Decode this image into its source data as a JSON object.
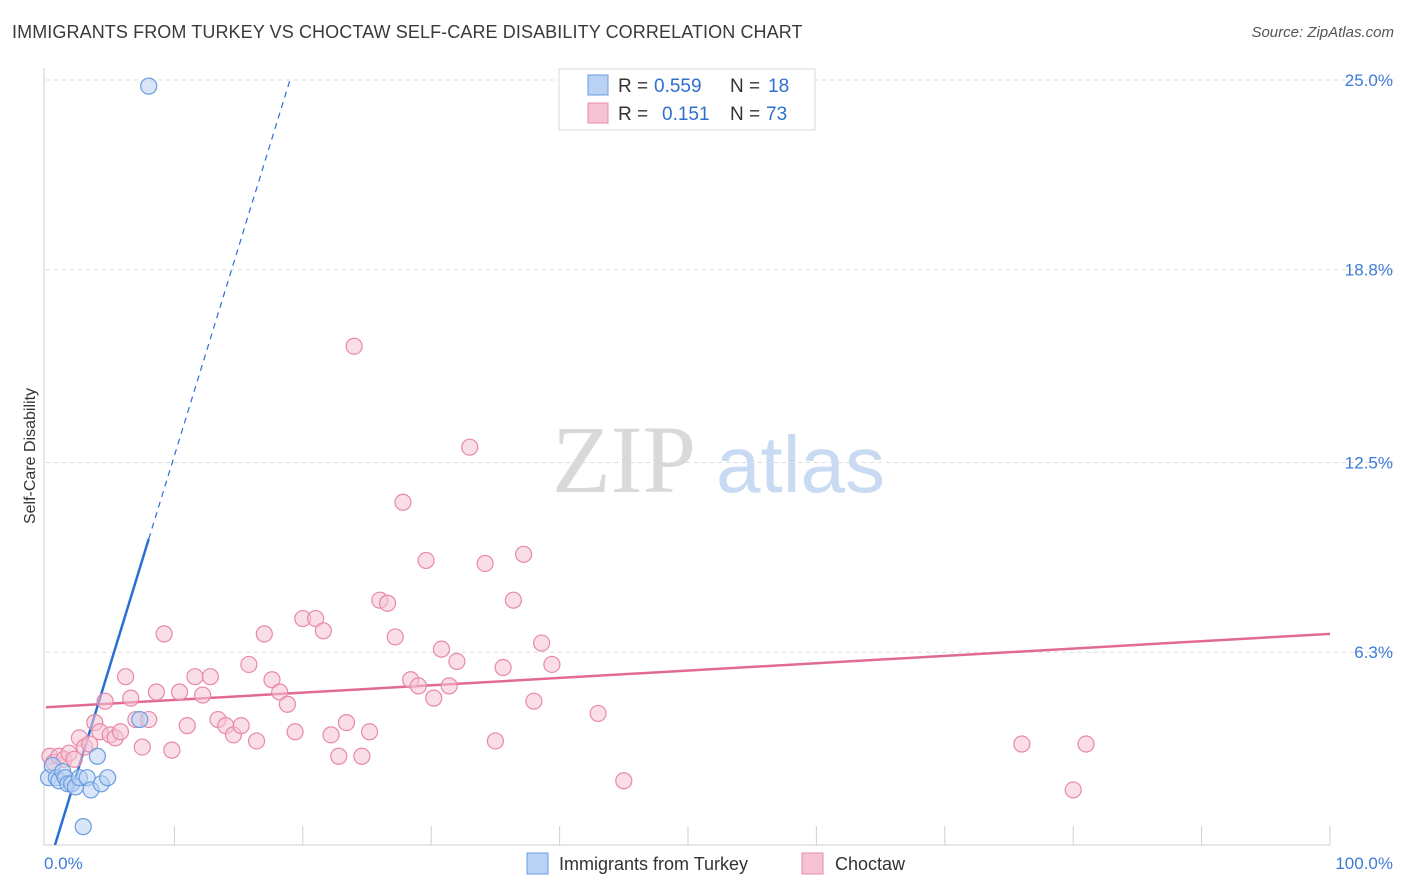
{
  "header": {
    "title": "IMMIGRANTS FROM TURKEY VS CHOCTAW SELF-CARE DISABILITY CORRELATION CHART",
    "source": "Source: ZipAtlas.com"
  },
  "watermark": {
    "zip": "ZIP",
    "atlas": "atlas"
  },
  "chart_data": {
    "type": "scatter",
    "title": "IMMIGRANTS FROM TURKEY VS CHOCTAW SELF-CARE DISABILITY CORRELATION CHART",
    "ylabel": "Self-Care Disability",
    "xlabel": "",
    "xlim": [
      0,
      100
    ],
    "ylim": [
      0,
      25
    ],
    "x_tick_labels": [
      "0.0%",
      "100.0%"
    ],
    "y_ticks": [
      {
        "value": 6.3,
        "label": "6.3%"
      },
      {
        "value": 12.5,
        "label": "12.5%"
      },
      {
        "value": 18.8,
        "label": "18.8%"
      },
      {
        "value": 25.0,
        "label": "25.0%"
      }
    ],
    "grid": true,
    "legend_position": "top-center",
    "stats": [
      {
        "r_label": "R =",
        "r": "0.559",
        "n_label": "N =",
        "n": "18"
      },
      {
        "r_label": "R =",
        "r": "0.151",
        "n_label": "N =",
        "n": "73"
      }
    ],
    "series": [
      {
        "name": "Immigrants from Turkey",
        "color": "#6a9de0",
        "fill": "#b9d1f2",
        "trend": {
          "x0": 0.7,
          "y0": 0.0,
          "x1": 8.0,
          "y1": 10.0,
          "x_dash_end": 19.0,
          "y_dash_end": 25.0,
          "color": "#2a6fd6"
        },
        "x": [
          0.2,
          0.5,
          0.8,
          1.0,
          1.3,
          1.5,
          1.7,
          2.0,
          2.3,
          2.6,
          2.9,
          3.2,
          3.5,
          4.0,
          4.3,
          4.8,
          7.3,
          8.0
        ],
        "y": [
          2.2,
          2.6,
          2.2,
          2.1,
          2.4,
          2.2,
          2.0,
          2.0,
          1.9,
          2.2,
          0.6,
          2.2,
          1.8,
          2.9,
          2.0,
          2.2,
          4.1,
          24.8
        ]
      },
      {
        "name": "Choctaw",
        "color": "#e889a8",
        "fill": "#f6c3d3",
        "trend": {
          "x0": 0.0,
          "y0": 4.5,
          "x1": 100.0,
          "y1": 6.9,
          "color": "#e06a94"
        },
        "x": [
          0.3,
          0.6,
          1.0,
          1.4,
          1.8,
          2.2,
          2.6,
          3.0,
          3.4,
          3.8,
          4.2,
          4.6,
          5.0,
          5.4,
          5.8,
          6.2,
          6.6,
          7.0,
          7.5,
          8.0,
          8.6,
          9.2,
          9.8,
          10.4,
          11.0,
          11.6,
          12.2,
          12.8,
          13.4,
          14.0,
          14.6,
          15.2,
          15.8,
          16.4,
          17.0,
          17.6,
          18.2,
          18.8,
          19.4,
          20.0,
          21.0,
          21.6,
          22.2,
          22.8,
          23.4,
          24.0,
          24.6,
          25.2,
          26.0,
          26.6,
          27.2,
          27.8,
          28.4,
          29.0,
          29.6,
          30.2,
          30.8,
          31.4,
          32.0,
          33.0,
          34.2,
          35.0,
          35.6,
          36.4,
          37.2,
          38.0,
          38.6,
          39.4,
          43.0,
          45.0,
          76.0,
          80.0,
          81.0
        ],
        "y": [
          2.9,
          2.7,
          2.9,
          2.8,
          3.0,
          2.8,
          3.5,
          3.2,
          3.3,
          4.0,
          3.7,
          4.7,
          3.6,
          3.5,
          3.7,
          5.5,
          4.8,
          4.1,
          3.2,
          4.1,
          5.0,
          6.9,
          3.1,
          5.0,
          3.9,
          5.5,
          4.9,
          5.5,
          4.1,
          3.9,
          3.6,
          3.9,
          5.9,
          3.4,
          6.9,
          5.4,
          5.0,
          4.6,
          3.7,
          7.4,
          7.4,
          7.0,
          3.6,
          2.9,
          4.0,
          16.3,
          2.9,
          3.7,
          8.0,
          7.9,
          6.8,
          11.2,
          5.4,
          5.2,
          9.3,
          4.8,
          6.4,
          5.2,
          6.0,
          13.0,
          9.2,
          3.4,
          5.8,
          8.0,
          9.5,
          4.7,
          6.6,
          5.9,
          4.3,
          2.1,
          3.3,
          1.8,
          3.3
        ]
      }
    ]
  }
}
